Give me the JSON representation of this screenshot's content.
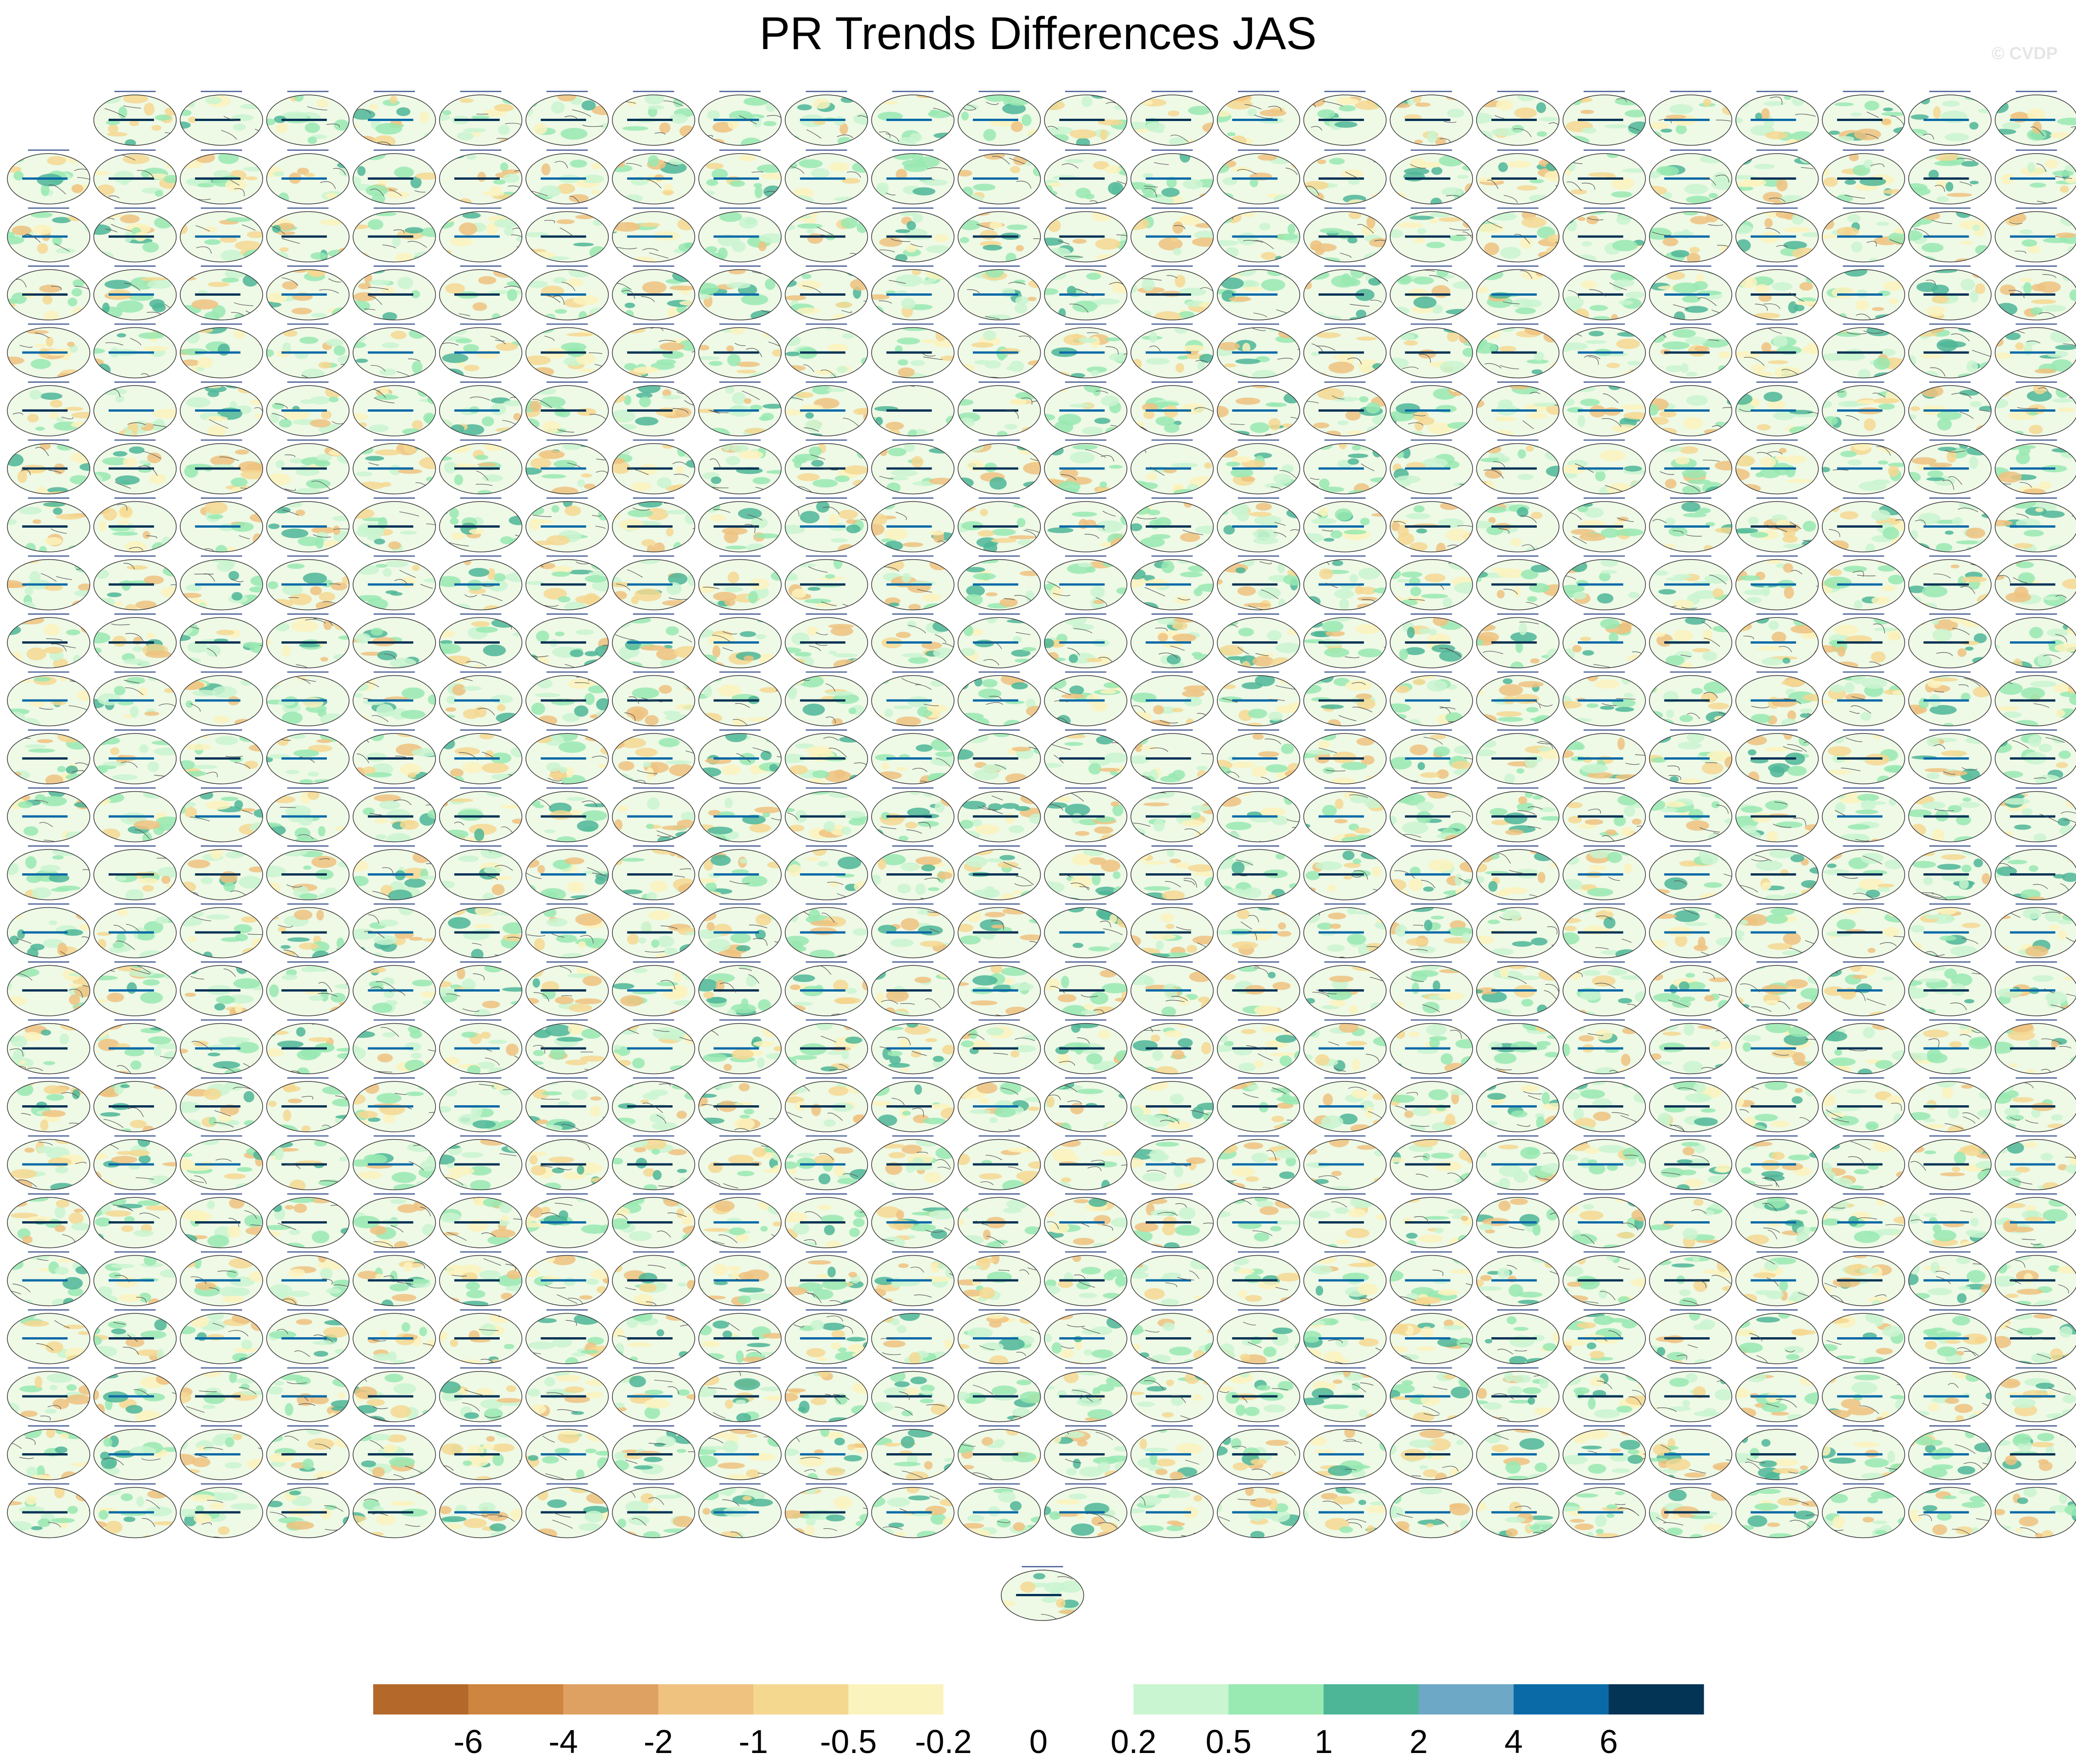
{
  "title": "PR Trends Differences JAS",
  "credit": "© CVDP",
  "chart_data": {
    "type": "heatmap",
    "title": "PR Trends Differences JAS",
    "layout": "panel grid of global map panels",
    "panel_rows": [
      23,
      24,
      24,
      24,
      24,
      24,
      24,
      24,
      24,
      24,
      24,
      24,
      24,
      24,
      24,
      24,
      24,
      24,
      24,
      24,
      24,
      24,
      24,
      24,
      24,
      1
    ],
    "projection": "global ellipse map per panel",
    "colorbar": {
      "levels": [
        "-6",
        "-4",
        "-2",
        "-1",
        "-0.5",
        "-0.2",
        "0",
        "0.2",
        "0.5",
        "1",
        "2",
        "4",
        "6"
      ],
      "colors": [
        "#b4682a",
        "#cd853f",
        "#dfa162",
        "#efc27f",
        "#f4d890",
        "#fbf3bd",
        "#ffffff",
        "#ffffff",
        "#c9f5d0",
        "#98e9b2",
        "#4db696",
        "#6ea8c7",
        "#0a6aa7",
        "#033355"
      ],
      "orientation": "horizontal",
      "placement": "bottom"
    }
  }
}
